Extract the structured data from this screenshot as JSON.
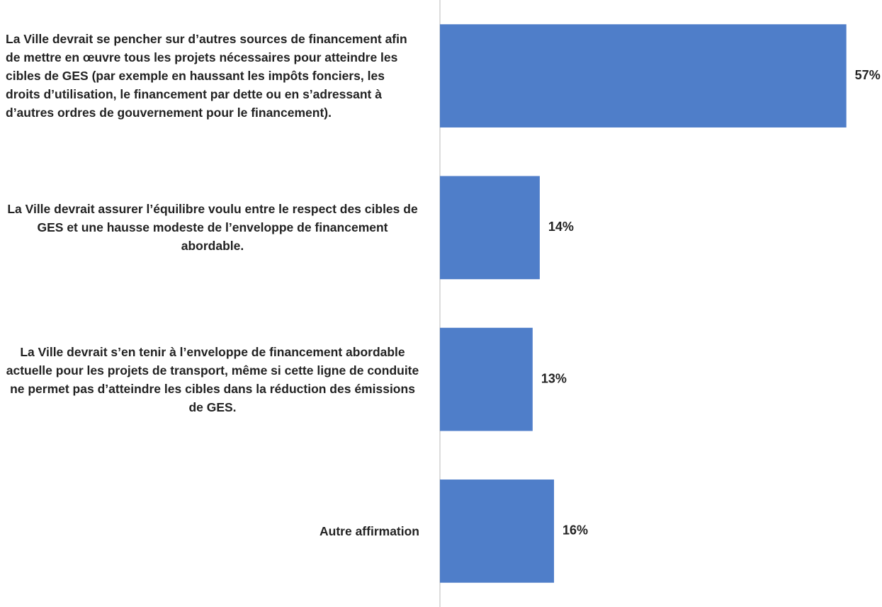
{
  "chart_data": {
    "type": "barh",
    "categories": [
      "La Ville devrait se pencher sur d’autres sources de financement afin de mettre en œuvre tous les projets nécessaires pour atteindre les cibles de GES (par exemple en haussant les impôts fonciers, les droits d’utilisation, le financement par dette ou en s’adressant à d’autres ordres de gouvernement pour le financement).",
      "La Ville devrait assurer l’équilibre voulu entre le respect des cibles de GES et une hausse modeste de l’enveloppe de financement abordable.",
      "La Ville devrait s’en tenir à l’enveloppe de financement abordable actuelle pour les projets de transport, même si cette ligne de conduite ne permet pas d’atteindre les cibles dans la réduction des émissions de GES.",
      "Autre affirmation"
    ],
    "values": [
      57,
      14,
      13,
      16
    ],
    "value_labels": [
      "57%",
      "14%",
      "13%",
      "16%"
    ],
    "color": "#4f7ec9",
    "xlim": [
      0,
      62
    ]
  }
}
